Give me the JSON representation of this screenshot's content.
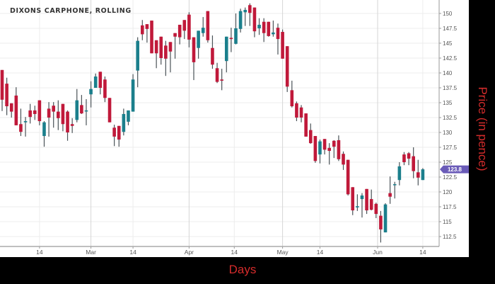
{
  "chart_data": {
    "type": "candlestick",
    "title": "DIXONS CARPHONE, ROLLING",
    "xlabel": "Days",
    "ylabel": "Price (in pence)",
    "ylim": [
      111,
      152
    ],
    "y_ticks": [
      112.5,
      115,
      117.5,
      120,
      122.5,
      125,
      127.5,
      130,
      132.5,
      135,
      137.5,
      140,
      142.5,
      145,
      147.5,
      150
    ],
    "x_ticks": [
      {
        "label": "14",
        "date": "Feb 14"
      },
      {
        "label": "Mar",
        "date": "Mar 1"
      },
      {
        "label": "14",
        "date": "Mar 14"
      },
      {
        "label": "Apr",
        "date": "Apr 1"
      },
      {
        "label": "14",
        "date": "Apr 14"
      },
      {
        "label": "May",
        "date": "May 1"
      },
      {
        "label": "14",
        "date": "May 14"
      },
      {
        "label": "Jun",
        "date": "Jun 1"
      },
      {
        "label": "14",
        "date": "Jun 14"
      }
    ],
    "grid": true,
    "last_price": "123.8",
    "colors": {
      "up": "#1b7f8c",
      "down": "#c0193a",
      "wick": "#4a5257",
      "badge": "#6a5bb8",
      "grid": "#ececec"
    },
    "columns": [
      "date",
      "open",
      "high",
      "low",
      "close"
    ],
    "candles": [
      [
        "Feb 4",
        140.5,
        140.5,
        133.6,
        135.5
      ],
      [
        "Feb 5",
        138.2,
        139.2,
        132.9,
        134.4
      ],
      [
        "Feb 6",
        134.9,
        134.9,
        132.5,
        133.5
      ],
      [
        "Feb 7",
        136.2,
        137.6,
        131.2,
        131.2
      ],
      [
        "Feb 8",
        131.4,
        134.0,
        129.4,
        130.1
      ],
      [
        "Feb 11",
        131.7,
        132.6,
        129.3,
        131.9
      ],
      [
        "Feb 12",
        133.7,
        134.8,
        131.5,
        132.6
      ],
      [
        "Feb 13",
        133.7,
        134.5,
        132.1,
        133.1
      ],
      [
        "Feb 14",
        135.4,
        135.4,
        131.2,
        131.9
      ],
      [
        "Feb 15",
        129.4,
        131.9,
        127.6,
        131.7
      ],
      [
        "Feb 18",
        134.0,
        135.1,
        129.3,
        132.5
      ],
      [
        "Feb 19",
        134.5,
        135.1,
        130.8,
        133.5
      ],
      [
        "Feb 20",
        133.5,
        135.4,
        130.4,
        132.4
      ],
      [
        "Feb 21",
        134.8,
        134.8,
        130.2,
        131.4
      ],
      [
        "Feb 22",
        133.5,
        133.7,
        128.6,
        130.0
      ],
      [
        "Feb 25",
        131.4,
        132.4,
        129.9,
        131.1
      ],
      [
        "Feb 26",
        132.1,
        137.3,
        131.7,
        135.4
      ],
      [
        "Feb 27",
        134.6,
        136.3,
        133.1,
        133.2
      ],
      [
        "Feb 28",
        133.7,
        135.6,
        131.2,
        133.7
      ],
      [
        "Mar 1",
        136.4,
        138.6,
        134.2,
        137.3
      ],
      [
        "Mar 4",
        137.5,
        139.9,
        137.5,
        139.4
      ],
      [
        "Mar 5",
        140.2,
        140.2,
        136.4,
        137.5
      ],
      [
        "Mar 6",
        138.9,
        139.4,
        135.1,
        135.8
      ],
      [
        "Mar 7",
        135.8,
        135.8,
        131.7,
        131.7
      ],
      [
        "Mar 8",
        130.8,
        131.3,
        127.7,
        129.3
      ],
      [
        "Mar 11",
        131.1,
        131.1,
        127.6,
        128.8
      ],
      [
        "Mar 12",
        130.1,
        134.0,
        129.5,
        133.1
      ],
      [
        "Mar 13",
        131.8,
        133.7,
        131.2,
        133.7
      ],
      [
        "Mar 14",
        133.5,
        139.8,
        133.5,
        138.9
      ],
      [
        "Mar 15",
        140.4,
        146.0,
        137.6,
        145.4
      ],
      [
        "Mar 18",
        148.0,
        148.9,
        145.5,
        146.5
      ],
      [
        "Mar 19",
        148.2,
        148.2,
        145.1,
        147.4
      ],
      [
        "Mar 20",
        148.8,
        148.8,
        143.3,
        143.3
      ],
      [
        "Mar 21",
        145.5,
        145.5,
        140.8,
        143.3
      ],
      [
        "Mar 22",
        146.1,
        146.1,
        141.4,
        142.5
      ],
      [
        "Mar 25",
        144.6,
        145.4,
        139.5,
        142.4
      ],
      [
        "Mar 26",
        145.2,
        145.2,
        140.1,
        143.6
      ],
      [
        "Mar 27",
        146.7,
        146.7,
        142.4,
        146.1
      ],
      [
        "Mar 28",
        148.1,
        148.1,
        144.8,
        146.0
      ],
      [
        "Mar 29",
        148.9,
        148.9,
        145.7,
        147.1
      ],
      [
        "Apr 1",
        149.8,
        150.2,
        144.3,
        145.6
      ],
      [
        "Apr 2",
        146.0,
        146.0,
        138.8,
        141.8
      ],
      [
        "Apr 3",
        144.2,
        147.1,
        142.4,
        147.1
      ],
      [
        "Apr 4",
        146.7,
        149.4,
        146.1,
        147.6
      ],
      [
        "Apr 5",
        150.4,
        150.4,
        145.1,
        145.5
      ],
      [
        "Apr 8",
        144.2,
        146.3,
        140.7,
        141.4
      ],
      [
        "Apr 9",
        140.8,
        141.7,
        138.3,
        138.5
      ],
      [
        "Apr 10",
        138.9,
        140.7,
        137.1,
        138.7
      ],
      [
        "Apr 11",
        142.0,
        146.1,
        140.1,
        146.1
      ],
      [
        "Apr 12",
        145.9,
        147.6,
        143.5,
        145.7
      ],
      [
        "Apr 15",
        144.9,
        150.0,
        144.8,
        147.5
      ],
      [
        "Apr 16",
        147.4,
        150.8,
        146.8,
        150.4
      ],
      [
        "Apr 17",
        150.2,
        151.0,
        147.9,
        150.6
      ],
      [
        "Apr 18",
        151.4,
        151.7,
        147.9,
        150.1
      ],
      [
        "Apr 23",
        151.0,
        151.0,
        146.0,
        147.0
      ],
      [
        "Apr 24",
        147.5,
        149.2,
        146.4,
        148.1
      ],
      [
        "Apr 25",
        148.6,
        149.2,
        145.2,
        146.7
      ],
      [
        "Apr 26",
        148.6,
        148.6,
        146.1,
        146.2
      ],
      [
        "Apr 29",
        146.5,
        148.8,
        146.1,
        146.8
      ],
      [
        "Apr 30",
        147.6,
        148.3,
        143.1,
        145.7
      ],
      [
        "May 1",
        146.9,
        147.3,
        142.4,
        142.4
      ],
      [
        "May 2",
        144.5,
        144.5,
        136.8,
        137.7
      ],
      [
        "May 3",
        137.1,
        138.7,
        134.2,
        134.4
      ],
      [
        "May 7",
        134.9,
        135.2,
        131.9,
        132.5
      ],
      [
        "May 8",
        134.2,
        134.6,
        131.7,
        132.5
      ],
      [
        "May 9",
        133.2,
        133.2,
        129.3,
        129.3
      ],
      [
        "May 10",
        130.4,
        131.5,
        128.1,
        128.2
      ],
      [
        "May 13",
        129.4,
        129.4,
        124.9,
        125.2
      ],
      [
        "May 14",
        126.3,
        128.8,
        124.8,
        128.5
      ],
      [
        "May 15",
        128.9,
        128.9,
        126.3,
        127.1
      ],
      [
        "May 16",
        127.4,
        128.2,
        124.6,
        126.9
      ],
      [
        "May 17",
        128.6,
        128.7,
        125.7,
        127.6
      ],
      [
        "May 20",
        128.7,
        129.5,
        125.2,
        125.5
      ],
      [
        "May 21",
        126.4,
        126.8,
        123.7,
        124.6
      ],
      [
        "May 22",
        125.4,
        125.4,
        119.4,
        119.6
      ],
      [
        "May 23",
        120.8,
        120.8,
        116.1,
        116.9
      ],
      [
        "May 24",
        117.4,
        119.6,
        116.8,
        117.6
      ],
      [
        "May 28",
        118.8,
        119.8,
        115.7,
        119.4
      ],
      [
        "May 29",
        120.5,
        120.5,
        116.3,
        116.9
      ],
      [
        "May 30",
        118.8,
        120.4,
        116.9,
        117.0
      ],
      [
        "May 31",
        118.0,
        118.2,
        115.6,
        116.3
      ],
      [
        "Jun 3",
        116.0,
        116.8,
        111.5,
        113.7
      ],
      [
        "Jun 4",
        113.2,
        118.1,
        113.2,
        117.9
      ],
      [
        "Jun 5",
        119.8,
        122.6,
        118.0,
        119.2
      ],
      [
        "Jun 6",
        121.2,
        121.7,
        118.9,
        121.3
      ],
      [
        "Jun 7",
        122.0,
        125.0,
        121.1,
        124.3
      ],
      [
        "Jun 10",
        126.3,
        126.7,
        124.5,
        125.0
      ],
      [
        "Jun 11",
        126.5,
        126.7,
        124.5,
        125.6
      ],
      [
        "Jun 12",
        126.0,
        127.5,
        122.3,
        123.5
      ],
      [
        "Jun 13",
        123.3,
        125.4,
        121.1,
        122.4
      ],
      [
        "Jun 14",
        122.0,
        124.0,
        122.0,
        123.8
      ]
    ]
  }
}
